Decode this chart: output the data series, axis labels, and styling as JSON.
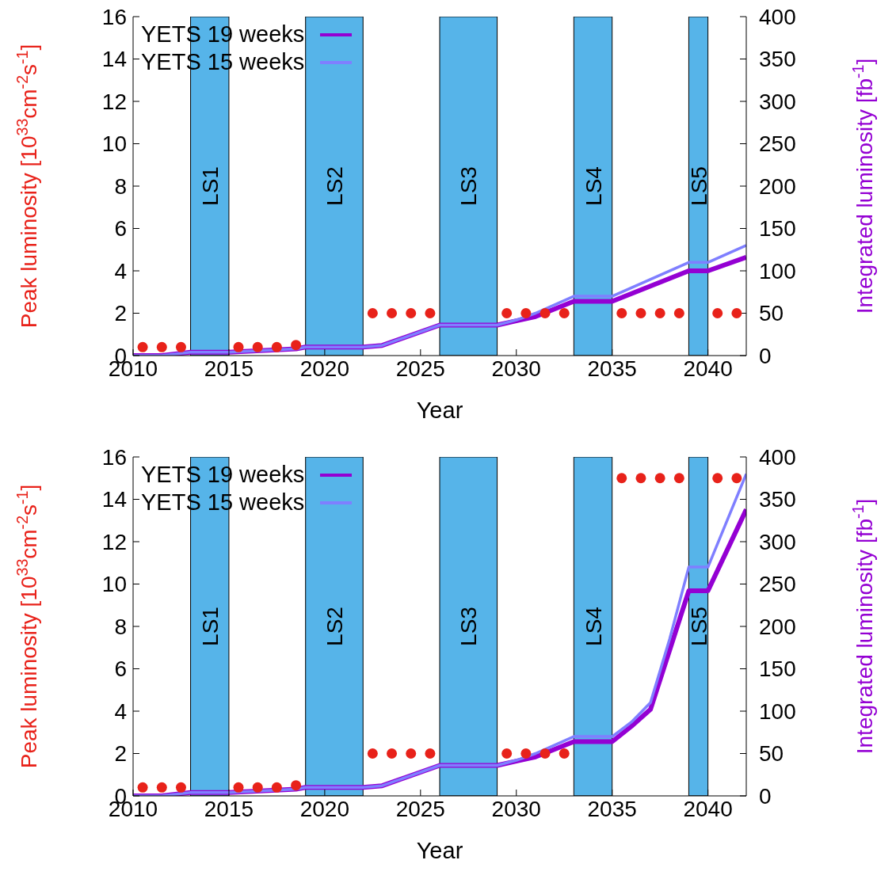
{
  "chart_data": [
    {
      "type": "line",
      "xlabel": "Year",
      "ylabel": "Peak luminosity [10$^{33}$cm$^{-2}$s$^{-1}$]",
      "y2label": "Integrated luminosity [fb$^{-1}$]",
      "xlim": [
        2010,
        2042
      ],
      "xticks": [
        2010,
        2015,
        2020,
        2025,
        2030,
        2035,
        2040
      ],
      "ylim": [
        0,
        16
      ],
      "yticks": [
        0,
        2,
        4,
        6,
        8,
        10,
        12,
        14,
        16
      ],
      "y2lim": [
        0,
        400
      ],
      "y2ticks": [
        0,
        50,
        100,
        150,
        200,
        250,
        300,
        350,
        400
      ],
      "legend": "top left",
      "grid": false,
      "line_style": "solid",
      "series": [
        {
          "type": "scatter",
          "marker": "circle",
          "color": "#e8221a",
          "x": [
            2010.5,
            2011.5,
            2012.5,
            2015.5,
            2016.5,
            2017.5,
            2018.5,
            2022.5,
            2023.5,
            2024.5,
            2025.5,
            2029.5,
            2030.5,
            2031.5,
            2032.5,
            2035.5,
            2036.5,
            2037.5,
            2038.5,
            2040.5,
            2041.5
          ],
          "values": [
            0.4,
            0.4,
            0.4,
            0.4,
            0.4,
            0.4,
            0.5,
            2,
            2,
            2,
            2,
            2,
            2,
            2,
            2,
            2,
            2,
            2,
            2,
            2,
            2
          ]
        },
        {
          "name": "YETS 19 weeks",
          "axis": "y2",
          "color": "#9400d3",
          "x": [
            2010,
            2011.5,
            2013,
            2015,
            2018.5,
            2019,
            2022,
            2023,
            2026,
            2029,
            2030,
            2031,
            2033,
            2035,
            2039,
            2040,
            2042
          ],
          "values": [
            0,
            0,
            4,
            4,
            8,
            10,
            10,
            12,
            36,
            36,
            41,
            46,
            64,
            64,
            100,
            100,
            116
          ]
        },
        {
          "name": "YETS 15 weeks",
          "axis": "y2",
          "color": "#7f7fff",
          "x": [
            2010,
            2011.5,
            2013,
            2015,
            2018.5,
            2019,
            2022,
            2023,
            2026,
            2029,
            2030,
            2031,
            2033,
            2035,
            2039,
            2040,
            2042
          ],
          "values": [
            0,
            0,
            4,
            4,
            8,
            10,
            10,
            12,
            36,
            36,
            42,
            50,
            70,
            70,
            110,
            110,
            130
          ]
        }
      ],
      "bands": [
        {
          "axis": "x",
          "from": 2013,
          "to": 2015,
          "label": "LS1",
          "color": "#56b4e9"
        },
        {
          "axis": "x",
          "from": 2019,
          "to": 2022,
          "label": "LS2",
          "color": "#56b4e9"
        },
        {
          "axis": "x",
          "from": 2026,
          "to": 2029,
          "label": "LS3",
          "color": "#56b4e9"
        },
        {
          "axis": "x",
          "from": 2033,
          "to": 2035,
          "label": "LS4",
          "color": "#56b4e9"
        },
        {
          "axis": "x",
          "from": 2039,
          "to": 2040,
          "label": "LS5",
          "color": "#56b4e9"
        }
      ]
    },
    {
      "type": "line",
      "xlabel": "Year",
      "ylabel": "Peak luminosity [10$^{33}$cm$^{-2}$s$^{-1}$]",
      "y2label": "Integrated luminosity [fb$^{-1}$]",
      "xlim": [
        2010,
        2042
      ],
      "xticks": [
        2010,
        2015,
        2020,
        2025,
        2030,
        2035,
        2040
      ],
      "ylim": [
        0,
        16
      ],
      "yticks": [
        0,
        2,
        4,
        6,
        8,
        10,
        12,
        14,
        16
      ],
      "y2lim": [
        0,
        400
      ],
      "y2ticks": [
        0,
        50,
        100,
        150,
        200,
        250,
        300,
        350,
        400
      ],
      "legend": "top left",
      "grid": false,
      "line_style": "solid",
      "series": [
        {
          "type": "scatter",
          "marker": "circle",
          "color": "#e8221a",
          "x": [
            2010.5,
            2011.5,
            2012.5,
            2015.5,
            2016.5,
            2017.5,
            2018.5,
            2022.5,
            2023.5,
            2024.5,
            2025.5,
            2029.5,
            2030.5,
            2031.5,
            2032.5,
            2035.5,
            2036.5,
            2037.5,
            2038.5,
            2040.5,
            2041.5
          ],
          "values": [
            0.4,
            0.4,
            0.4,
            0.4,
            0.4,
            0.4,
            0.5,
            2,
            2,
            2,
            2,
            2,
            2,
            2,
            2,
            15,
            15,
            15,
            15,
            15,
            15
          ]
        },
        {
          "name": "YETS 19 weeks",
          "axis": "y2",
          "color": "#9400d3",
          "x": [
            2010,
            2011.5,
            2013,
            2015,
            2018.5,
            2019,
            2022,
            2023,
            2026,
            2029,
            2030,
            2031,
            2033,
            2035,
            2036,
            2037,
            2038,
            2039,
            2040,
            2042
          ],
          "values": [
            0,
            0,
            4,
            4,
            8,
            10,
            10,
            12,
            36,
            36,
            41,
            46,
            64,
            64,
            82,
            102,
            172,
            242,
            242,
            338
          ]
        },
        {
          "name": "YETS 15 weeks",
          "axis": "y2",
          "color": "#7f7fff",
          "x": [
            2010,
            2011.5,
            2013,
            2015,
            2018.5,
            2019,
            2022,
            2023,
            2026,
            2029,
            2030,
            2031,
            2033,
            2035,
            2036,
            2037,
            2038,
            2039,
            2040,
            2042
          ],
          "values": [
            0,
            0,
            4,
            4,
            8,
            10,
            10,
            12,
            36,
            36,
            42,
            50,
            70,
            70,
            87,
            110,
            185,
            270,
            270,
            380
          ]
        }
      ],
      "bands": [
        {
          "axis": "x",
          "from": 2013,
          "to": 2015,
          "label": "LS1",
          "color": "#56b4e9"
        },
        {
          "axis": "x",
          "from": 2019,
          "to": 2022,
          "label": "LS2",
          "color": "#56b4e9"
        },
        {
          "axis": "x",
          "from": 2026,
          "to": 2029,
          "label": "LS3",
          "color": "#56b4e9"
        },
        {
          "axis": "x",
          "from": 2033,
          "to": 2035,
          "label": "LS4",
          "color": "#56b4e9"
        },
        {
          "axis": "x",
          "from": 2039,
          "to": 2040,
          "label": "LS5",
          "color": "#56b4e9"
        }
      ]
    }
  ]
}
